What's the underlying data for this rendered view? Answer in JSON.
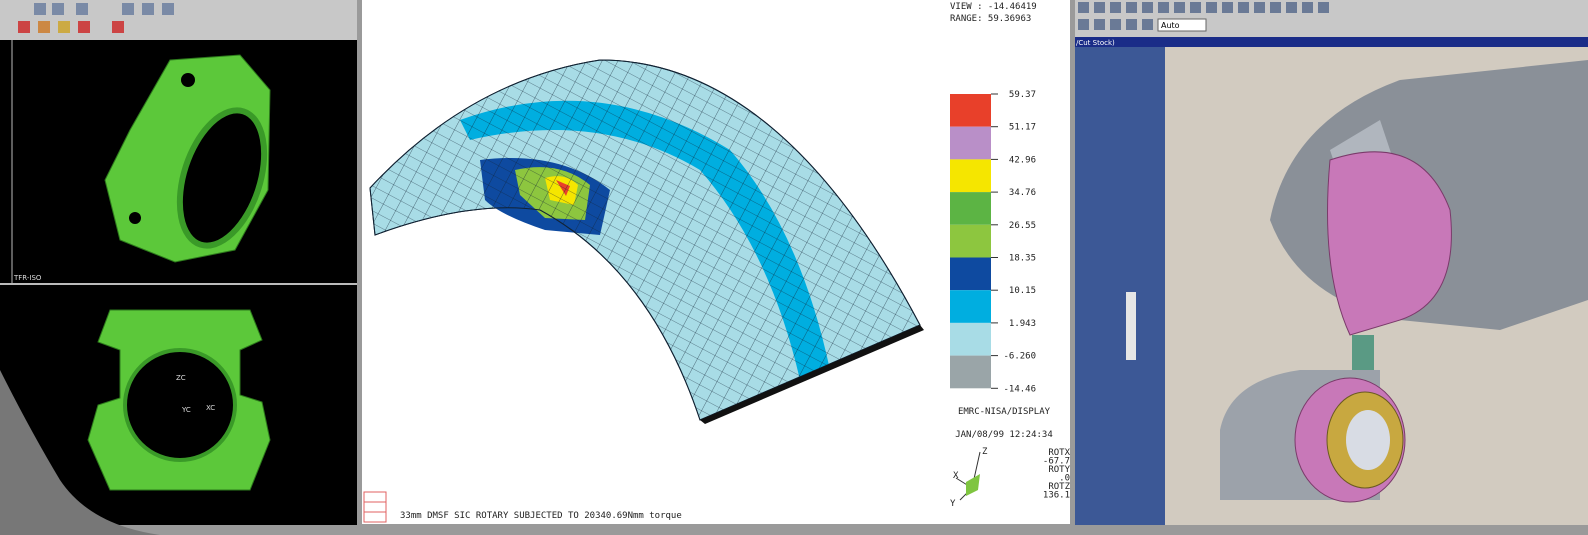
{
  "left_panel": {
    "view_label": "TFR-ISO",
    "axis_labels": [
      "ZC",
      "YC",
      "XC"
    ]
  },
  "fea_panel": {
    "view": "VIEW : -14.46419",
    "range": "RANGE: 59.36963",
    "legend": {
      "labels": [
        "59.37",
        "51.17",
        "42.96",
        "34.76",
        "26.55",
        "18.35",
        "10.15",
        "1.943",
        "-6.260",
        "-14.46"
      ],
      "colors": [
        "#e8402a",
        "#b98fc8",
        "#f5e600",
        "#5cb444",
        "#8dc63f",
        "#0e4aa0",
        "#00aee0",
        "#a8dce6",
        "#9aa5a8"
      ]
    },
    "program": "EMRC-NISA/DISPLAY",
    "timestamp": "JAN/08/99 12:24:34",
    "axes": [
      "Z",
      "X",
      "Y"
    ],
    "rotation": [
      "ROTX",
      "-67.7",
      "ROTY",
      ".0",
      "ROTZ",
      "136.1"
    ],
    "caption": "33mm DMSF SIC ROTARY SUBJECTED TO 20340.69Nmm torque"
  },
  "cam_panel": {
    "dropdown": "Auto",
    "title_fragment": "/Cut Stock)"
  }
}
